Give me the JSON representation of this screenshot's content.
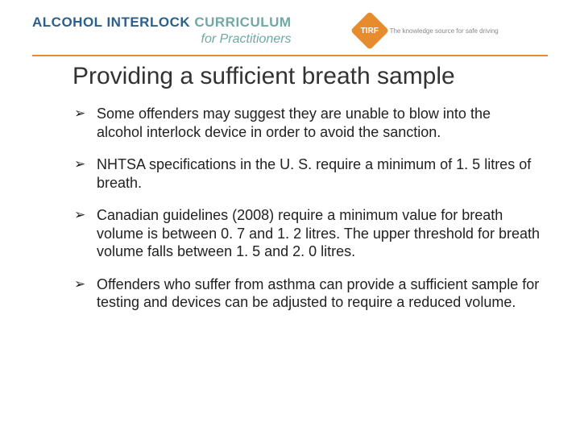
{
  "header": {
    "brand_part1": "ALCOHOL INTERLOCK",
    "brand_part2": " CURRICULUM",
    "subtitle": "for Practitioners",
    "logo_text": "TIRF",
    "tagline": "The knowledge source for safe driving",
    "divider_color": "#e78b2f",
    "brand_color_blue": "#2b5f8c",
    "brand_color_teal": "#6fa8a4",
    "logo_bg": "#e78b2f"
  },
  "slide": {
    "title": "Providing a sufficient breath sample",
    "bullets": [
      "Some offenders may suggest they are unable to blow into the alcohol interlock device in order to avoid the sanction.",
      "NHTSA specifications in the U. S. require a minimum of 1. 5 litres of breath.",
      "Canadian guidelines (2008) require a minimum value for breath volume is between 0. 7 and 1. 2 litres. The upper threshold for breath volume falls between 1. 5 and 2. 0 litres.",
      "Offenders who suffer from asthma can provide a sufficient sample for testing and devices can be adjusted to require a reduced volume."
    ]
  }
}
